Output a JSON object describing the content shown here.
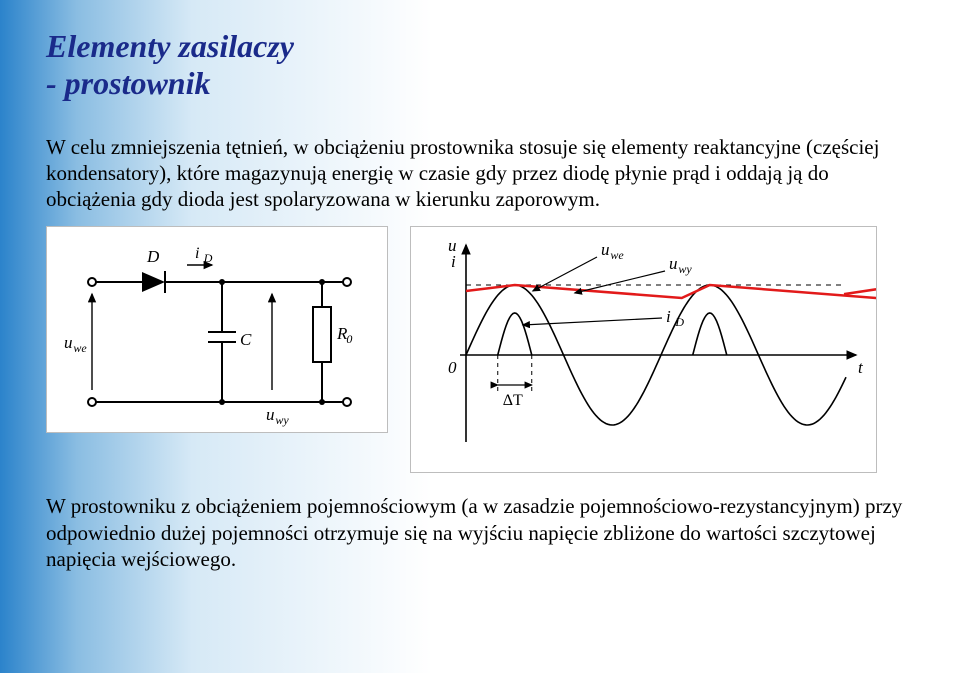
{
  "title_line1": "Elementy zasilaczy",
  "title_line2": "- prostownik",
  "paragraph1": "W celu zmniejszenia tętnień, w obciążeniu prostownika stosuje się  elementy reaktancyjne (częściej kondensatory), które magazynują energię w czasie gdy przez diodę  płynie prąd i oddają ją do obciążenia gdy dioda jest spolaryzowana w kierunku zaporowym.",
  "paragraph2": "W prostowniku z obciążeniem pojemnościowym (a w zasadzie pojemnościowo-rezystancyjnym) przy odpowiednio dużej pojemności otrzymuje się na wyjściu napięcie zbliżone do wartości szczytowej napięcia wejściowego.",
  "circuit": {
    "stroke": "#000000",
    "stroke_width": 2,
    "background": "#ffffff",
    "labels": {
      "D": "D",
      "iD": "i",
      "iD_sub": "D",
      "C": "C",
      "R0": "R",
      "R0_sub": "0",
      "uwe": "u",
      "uwe_sub": "we",
      "uwy": "u",
      "uwy_sub": "wy"
    },
    "label_fontsize": 17,
    "sub_fontsize": 12
  },
  "waveform": {
    "axis_color": "#000000",
    "sine_color": "#000000",
    "output_color": "#e21a1a",
    "output_width": 2.5,
    "line_width": 1.6,
    "background": "#ffffff",
    "x_range": 720,
    "y_amp": 70,
    "y_zero": 128,
    "labels": {
      "y_axis_u": "u",
      "y_axis_i": "i",
      "zero": "0",
      "t": "t",
      "uwe": "u",
      "uwe_sub": "we",
      "uwy": "u",
      "uwy_sub": "wy",
      "iD": "i",
      "iD_sub": "D",
      "dT": "ΔT"
    },
    "label_fontsize": 17,
    "sub_fontsize": 12
  }
}
